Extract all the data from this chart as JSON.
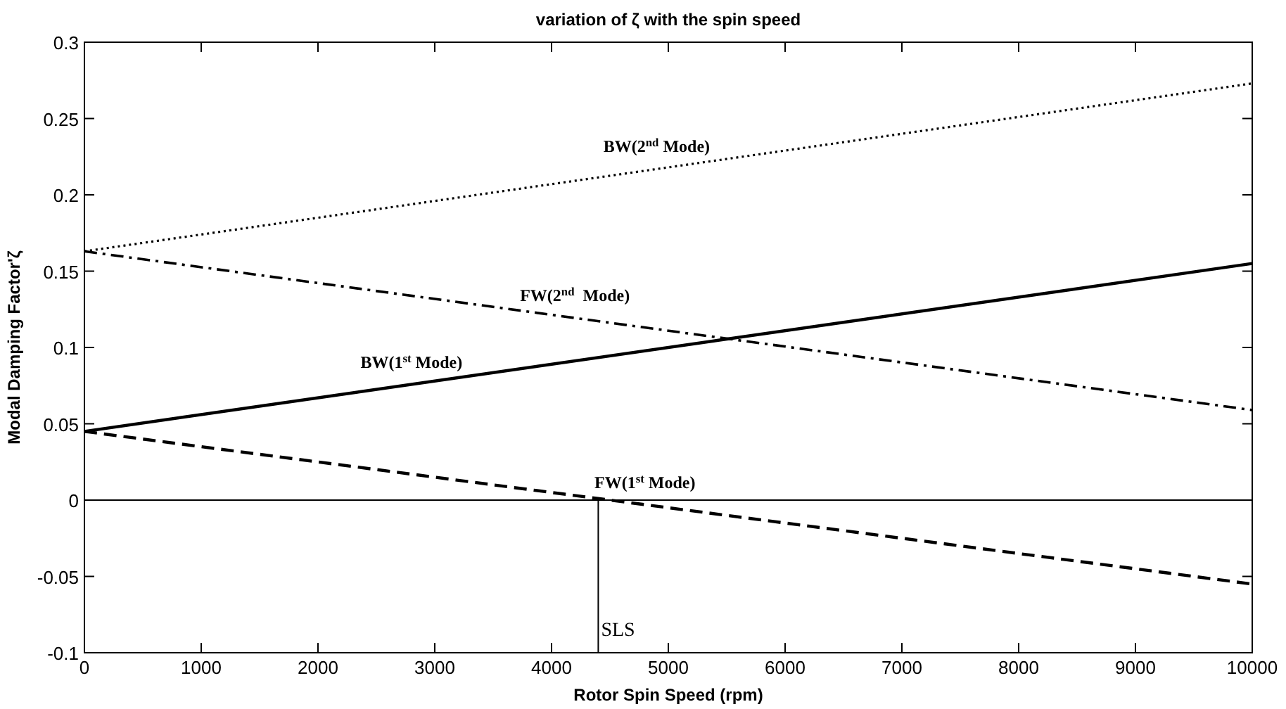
{
  "chart_data": {
    "type": "line",
    "title": "variation of ζ with the spin speed",
    "xlabel": "Rotor Spin Speed (rpm)",
    "ylabel": "Modal Damping Factor'ζ",
    "x": [
      0,
      10000
    ],
    "series": [
      {
        "name": "BW(2$^{nd}$ Mode)",
        "color": "#000000",
        "values": [
          0.163,
          0.273
        ],
        "line_style": "dotted"
      },
      {
        "name": "FW(2$^{nd}$  Mode)",
        "color": "#000000",
        "values": [
          0.163,
          0.059
        ],
        "line_style": "dashdot"
      },
      {
        "name": "BW(1$^{st}$ Mode)",
        "color": "#000000",
        "values": [
          0.045,
          0.155
        ],
        "line_style": "solid"
      },
      {
        "name": "FW(1$^{st}$ Mode)",
        "color": "#000000",
        "values": [
          0.045,
          -0.055
        ],
        "line_style": "dashed"
      }
    ],
    "xlim": [
      0,
      10000
    ],
    "xticks": [
      0,
      1000,
      2000,
      3000,
      4000,
      5000,
      6000,
      7000,
      8000,
      9000,
      10000
    ],
    "ylim": [
      -0.1,
      0.3
    ],
    "yticks": [
      -0.1,
      -0.05,
      0,
      0.05,
      0.1,
      0.15,
      0.2,
      0.25,
      0.3
    ],
    "ref_lines": [
      {
        "axis": "y",
        "value": 0,
        "color": "#000000",
        "line_style": "solid"
      },
      {
        "axis": "x",
        "value": 4400,
        "label": "SLS",
        "color": "#000000",
        "line_style": "solid"
      }
    ],
    "grid": false
  }
}
